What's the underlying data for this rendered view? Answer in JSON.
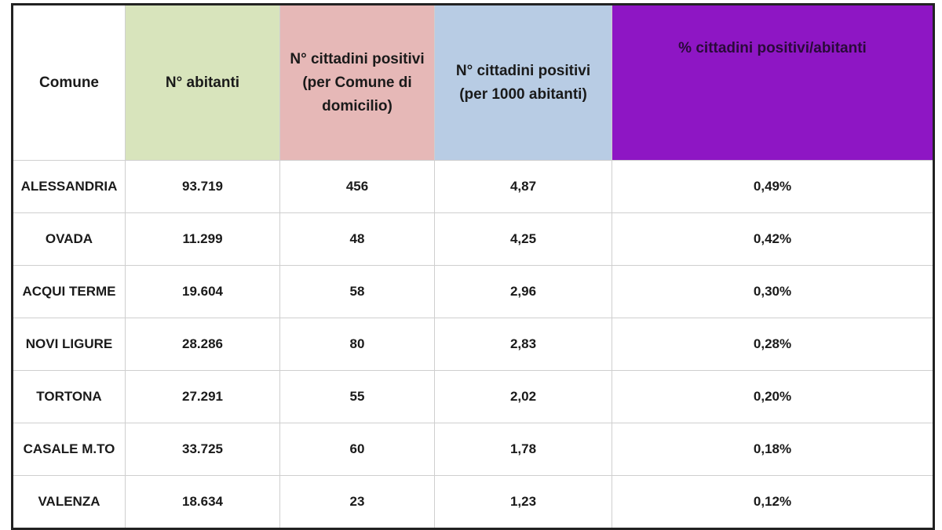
{
  "table": {
    "headers": [
      "Comune",
      "N° abitanti",
      "N° cittadini positivi (per Comune di domicilio)",
      "N° cittadini positivi (per 1000 abitanti)",
      "% cittadini positivi/abitanti"
    ],
    "rows": [
      [
        "ALESSANDRIA",
        "93.719",
        "456",
        "4,87",
        "0,49%"
      ],
      [
        "OVADA",
        "11.299",
        "48",
        "4,25",
        "0,42%"
      ],
      [
        "ACQUI TERME",
        "19.604",
        "58",
        "2,96",
        "0,30%"
      ],
      [
        "NOVI LIGURE",
        "28.286",
        "80",
        "2,83",
        "0,28%"
      ],
      [
        "TORTONA",
        "27.291",
        "55",
        "2,02",
        "0,20%"
      ],
      [
        "CASALE M.TO",
        "33.725",
        "60",
        "1,78",
        "0,18%"
      ],
      [
        "VALENZA",
        "18.634",
        "23",
        "1,23",
        "0,12%"
      ]
    ]
  }
}
